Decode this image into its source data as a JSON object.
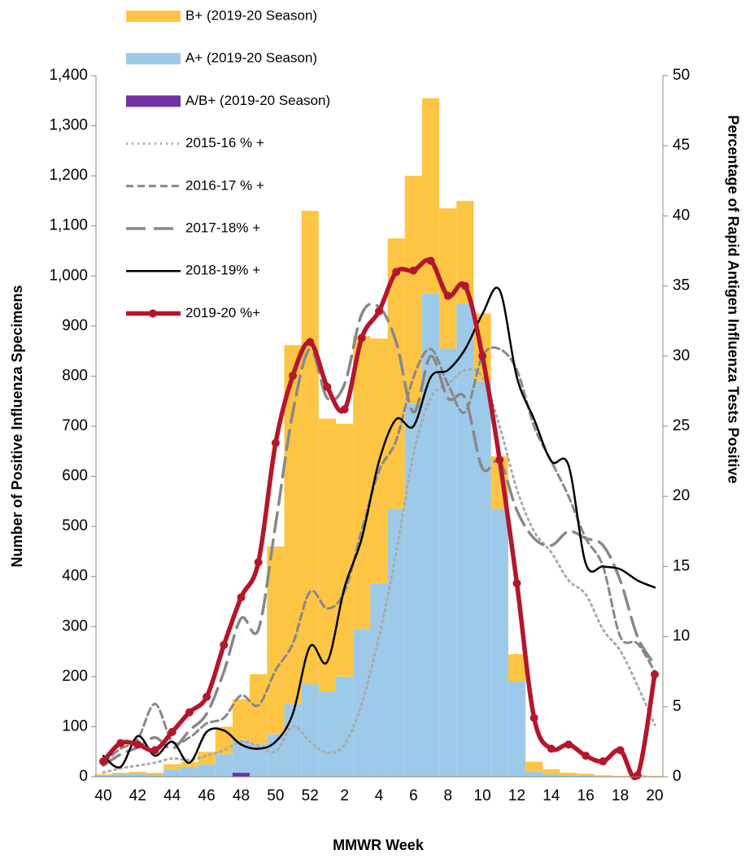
{
  "chart_data": {
    "type": "combo",
    "x_label": "MMWR Week",
    "y_label": "Number of Positive Influenza Specimens",
    "y2_label": "Percentage of Rapid Antigen Influenza Tests Positive",
    "categories": [
      "40",
      null,
      "42",
      null,
      "44",
      null,
      "46",
      null,
      "48",
      null,
      "50",
      null,
      "52",
      null,
      "2",
      null,
      "4",
      null,
      "6",
      null,
      "8",
      null,
      "10",
      null,
      "12",
      null,
      "14",
      null,
      "16",
      null,
      "18",
      null,
      "20"
    ],
    "ylim": [
      0,
      1400
    ],
    "yticks": [
      0,
      100,
      200,
      300,
      400,
      500,
      600,
      700,
      800,
      900,
      {
        "value": 1000,
        "label": "1,000"
      },
      {
        "value": 1100,
        "label": "1,100"
      },
      {
        "value": 1200,
        "label": "1,200"
      },
      {
        "value": 1300,
        "label": "1,300"
      },
      {
        "value": 1400,
        "label": "1,400"
      }
    ],
    "y2lim": [
      0,
      50
    ],
    "y2ticks": [
      0,
      5,
      10,
      15,
      20,
      25,
      30,
      35,
      40,
      45,
      50
    ],
    "series": [
      {
        "name": "B+ (2019-20 Season)",
        "type": "bar",
        "color": "#fdc543",
        "values": [
          2,
          3,
          3,
          4,
          10,
          10,
          25,
          55,
          82,
          140,
          375,
          717,
          945,
          545,
          505,
          585,
          490,
          540,
          455,
          390,
          280,
          205,
          135,
          105,
          55,
          20,
          10,
          5,
          3,
          2,
          1,
          2,
          1
        ]
      },
      {
        "name": "A+ (2019-20 Season)",
        "type": "bar",
        "color": "#9ecae9",
        "values": [
          3,
          5,
          7,
          4,
          15,
          20,
          25,
          45,
          65,
          65,
          85,
          145,
          185,
          170,
          200,
          295,
          385,
          535,
          745,
          965,
          855,
          945,
          790,
          535,
          190,
          10,
          5,
          3,
          3,
          1,
          1,
          1,
          1
        ]
      },
      {
        "name": "A/B+ (2019-20 Season)",
        "type": "bar",
        "color": "#7030a0",
        "values": [
          0,
          0,
          0,
          0,
          0,
          0,
          0,
          0,
          8,
          0,
          0,
          0,
          0,
          0,
          0,
          0,
          0,
          0,
          0,
          0,
          0,
          0,
          0,
          0,
          0,
          0,
          0,
          0,
          0,
          0,
          0,
          0,
          0
        ]
      },
      {
        "name": "2015-16 % +",
        "type": "line",
        "axis": "y2",
        "color": "#aaaaaa",
        "line_style": "dotted",
        "values": [
          0.3,
          0.6,
          0.8,
          1.0,
          1.3,
          1.2,
          1.5,
          1.9,
          2.5,
          2.2,
          1.8,
          3.6,
          2.5,
          1.7,
          2.3,
          5.2,
          10.0,
          16.0,
          23.0,
          27.0,
          28.0,
          29.0,
          28.5,
          25.0,
          20.5,
          17.5,
          16.0,
          14.0,
          13.0,
          10.5,
          9.0,
          6.5,
          3.7
        ]
      },
      {
        "name": "2016-17 % +",
        "type": "line",
        "axis": "y2",
        "color": "#888888",
        "line_style": "dashed",
        "values": [
          1.0,
          2.0,
          2.7,
          5.2,
          2.5,
          2.8,
          3.8,
          4.2,
          5.8,
          5.1,
          7.6,
          9.5,
          13.2,
          12.0,
          13.2,
          17.6,
          21.8,
          24.0,
          28.5,
          30.5,
          28.0,
          26.0,
          30.0,
          30.5,
          29.0,
          25.0,
          22.5,
          20.0,
          17.0,
          15.0,
          10.0,
          9.5,
          7.5
        ]
      },
      {
        "name": "2017-18% +",
        "type": "line",
        "axis": "y2",
        "color": "#888888",
        "line_style": "long-dash",
        "values": [
          0.8,
          1.6,
          2.1,
          2.8,
          2.0,
          3.3,
          4.5,
          7.5,
          11.3,
          10.5,
          18.0,
          26.0,
          30.5,
          27.0,
          28.0,
          33.0,
          33.5,
          31.0,
          26.0,
          30.0,
          27.0,
          27.0,
          22.0,
          22.5,
          19.0,
          17.0,
          16.5,
          17.5,
          17.0,
          16.5,
          14.0,
          10.0,
          8.0
        ]
      },
      {
        "name": "2018-19% +",
        "type": "line",
        "axis": "y2",
        "color": "#000000",
        "line_style": "solid",
        "values": [
          1.5,
          0.7,
          2.9,
          1.5,
          2.5,
          1.0,
          3.2,
          3.3,
          2.3,
          2.0,
          2.5,
          4.5,
          9.3,
          8.2,
          13.5,
          17.0,
          22.5,
          25.5,
          25.0,
          28.5,
          29.0,
          30.5,
          33.0,
          34.7,
          28.5,
          25.5,
          22.5,
          22.2,
          15.2,
          15.0,
          14.8,
          14.0,
          13.5
        ]
      },
      {
        "name": "2019-20 %+",
        "type": "line",
        "axis": "y2",
        "color": "#b5162b",
        "line_style": "thick",
        "marker": true,
        "values": [
          1.1,
          2.4,
          2.3,
          1.9,
          3.2,
          4.6,
          5.7,
          9.4,
          12.8,
          15.3,
          23.8,
          28.6,
          31.0,
          27.8,
          26.2,
          31.3,
          33.2,
          36.0,
          36.1,
          36.8,
          34.3,
          35.0,
          30.0,
          22.6,
          13.8,
          4.2,
          2.0,
          2.3,
          1.5,
          1.1,
          1.9,
          0.1,
          7.3
        ]
      }
    ]
  }
}
